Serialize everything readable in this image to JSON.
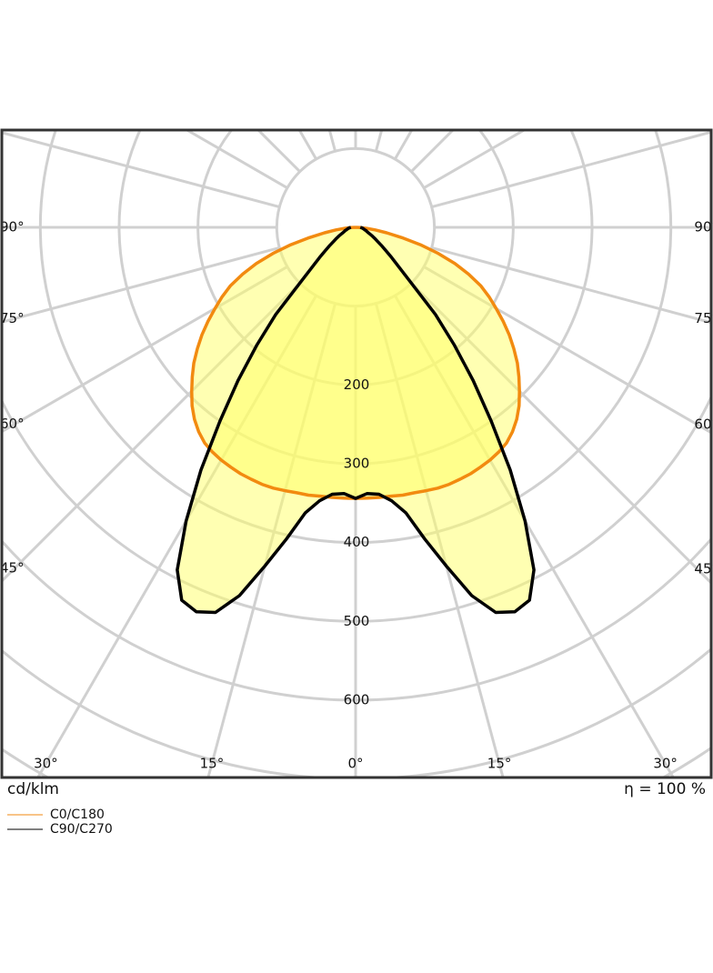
{
  "chart_data": {
    "type": "polar",
    "x": [
      -90,
      -87.5,
      -85,
      -82.5,
      -80,
      -77.5,
      -75,
      -72.5,
      -70,
      -67.5,
      -65,
      -62.5,
      -60,
      -57.5,
      -55,
      -52.5,
      -50,
      -47.5,
      -45,
      -42.5,
      -40,
      -37.5,
      -35,
      -32.5,
      -30,
      -27.5,
      -25,
      -22.5,
      -20,
      -17.5,
      -15,
      -12.5,
      -10,
      -7.5,
      -5,
      -2.5,
      0,
      2.5,
      5,
      7.5,
      10,
      12.5,
      15,
      17.5,
      20,
      22.5,
      25,
      27.5,
      30,
      32.5,
      35,
      37.5,
      40,
      42.5,
      45,
      47.5,
      50,
      52.5,
      55,
      57.5,
      60,
      62.5,
      65,
      67.5,
      70,
      72.5,
      75,
      77.5,
      80,
      82.5,
      85,
      87.5,
      90
    ],
    "series": [
      {
        "name": "C0/C180",
        "color": "#f28a10",
        "values": [
          0,
          6,
          14,
          25,
          40,
          60,
          85,
          110,
          134,
          155,
          175,
          191,
          206,
          222,
          238,
          253,
          268,
          281,
          294,
          307,
          318,
          327,
          334,
          338,
          341,
          343,
          345,
          346,
          347,
          347,
          346,
          345,
          345,
          344,
          344,
          344,
          344,
          344,
          344,
          344,
          345,
          345,
          346,
          347,
          347,
          346,
          345,
          343,
          341,
          338,
          334,
          327,
          318,
          307,
          294,
          281,
          268,
          253,
          238,
          222,
          206,
          191,
          175,
          155,
          134,
          110,
          85,
          60,
          40,
          25,
          14,
          6,
          0
        ]
      },
      {
        "name": "C90/C270",
        "color": "#000000",
        "values": [
          6,
          7,
          8,
          9,
          10,
          11,
          12,
          14,
          15,
          17,
          20,
          24,
          28,
          33,
          40,
          48,
          60,
          75,
          100,
          150,
          195,
          245,
          300,
          365,
          430,
          490,
          522,
          528,
          520,
          490,
          445,
          405,
          368,
          350,
          340,
          338,
          344,
          338,
          340,
          350,
          368,
          405,
          445,
          490,
          520,
          528,
          522,
          490,
          430,
          365,
          300,
          245,
          195,
          150,
          100,
          75,
          60,
          48,
          40,
          33,
          28,
          24,
          20,
          17,
          15,
          14,
          12,
          11,
          10,
          9,
          8,
          7,
          6
        ]
      }
    ],
    "rlim": [
      0,
      600
    ],
    "rticks": [
      200,
      300,
      400,
      500,
      600
    ],
    "angle_ticks": [
      {
        "value": 0,
        "label": "0°"
      },
      {
        "value": 15,
        "label": "15°"
      },
      {
        "value": 30,
        "label": "30°"
      },
      {
        "value": 45,
        "label": "45°"
      },
      {
        "value": 60,
        "label": "60°"
      },
      {
        "value": 75,
        "label": "75°"
      },
      {
        "value": 90,
        "label": "90°"
      }
    ],
    "unit": "cd/klm",
    "efficiency": "η = 100 %",
    "fill_color": "#ffff66"
  }
}
